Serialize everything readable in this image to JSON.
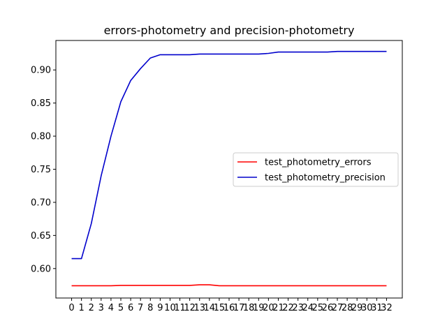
{
  "chart_data": {
    "type": "line",
    "title": "errors-photometry and precision-photometry",
    "xlabel": "",
    "ylabel": "",
    "x": [
      0,
      1,
      2,
      3,
      4,
      5,
      6,
      7,
      8,
      9,
      10,
      11,
      12,
      13,
      14,
      15,
      16,
      17,
      18,
      19,
      20,
      21,
      22,
      23,
      24,
      25,
      26,
      27,
      28,
      29,
      30,
      31,
      32
    ],
    "x_ticks": [
      "0",
      "1",
      "2",
      "3",
      "4",
      "5",
      "6",
      "7",
      "8",
      "9",
      "10",
      "11",
      "12",
      "13",
      "14",
      "15",
      "16",
      "17",
      "18",
      "19",
      "20",
      "21",
      "22",
      "23",
      "24",
      "25",
      "26",
      "27",
      "28",
      "29",
      "30",
      "31",
      "32"
    ],
    "y_ticks": [
      "0.60",
      "0.65",
      "0.70",
      "0.75",
      "0.80",
      "0.85",
      "0.90"
    ],
    "y_tick_values": [
      0.6,
      0.65,
      0.7,
      0.75,
      0.8,
      0.85,
      0.9
    ],
    "ylim": [
      0.5555,
      0.9445
    ],
    "xlim": [
      -1.6,
      33.6
    ],
    "grid": false,
    "legend_position": "center-right",
    "series": [
      {
        "name": "test_photometry_errors",
        "color": "#ff0000",
        "values": [
          0.574,
          0.574,
          0.574,
          0.574,
          0.574,
          0.5745,
          0.5745,
          0.5745,
          0.5745,
          0.5745,
          0.5745,
          0.5745,
          0.5745,
          0.5755,
          0.5755,
          0.574,
          0.574,
          0.574,
          0.574,
          0.574,
          0.574,
          0.574,
          0.574,
          0.574,
          0.574,
          0.574,
          0.574,
          0.574,
          0.574,
          0.574,
          0.574,
          0.574,
          0.574
        ]
      },
      {
        "name": "test_photometry_precision",
        "color": "#0000cc",
        "values": [
          0.615,
          0.615,
          0.668,
          0.74,
          0.8,
          0.852,
          0.884,
          0.902,
          0.918,
          0.923,
          0.923,
          0.923,
          0.923,
          0.924,
          0.924,
          0.924,
          0.924,
          0.924,
          0.924,
          0.924,
          0.925,
          0.927,
          0.927,
          0.927,
          0.927,
          0.927,
          0.927,
          0.928,
          0.928,
          0.928,
          0.928,
          0.928,
          0.928
        ]
      }
    ]
  }
}
